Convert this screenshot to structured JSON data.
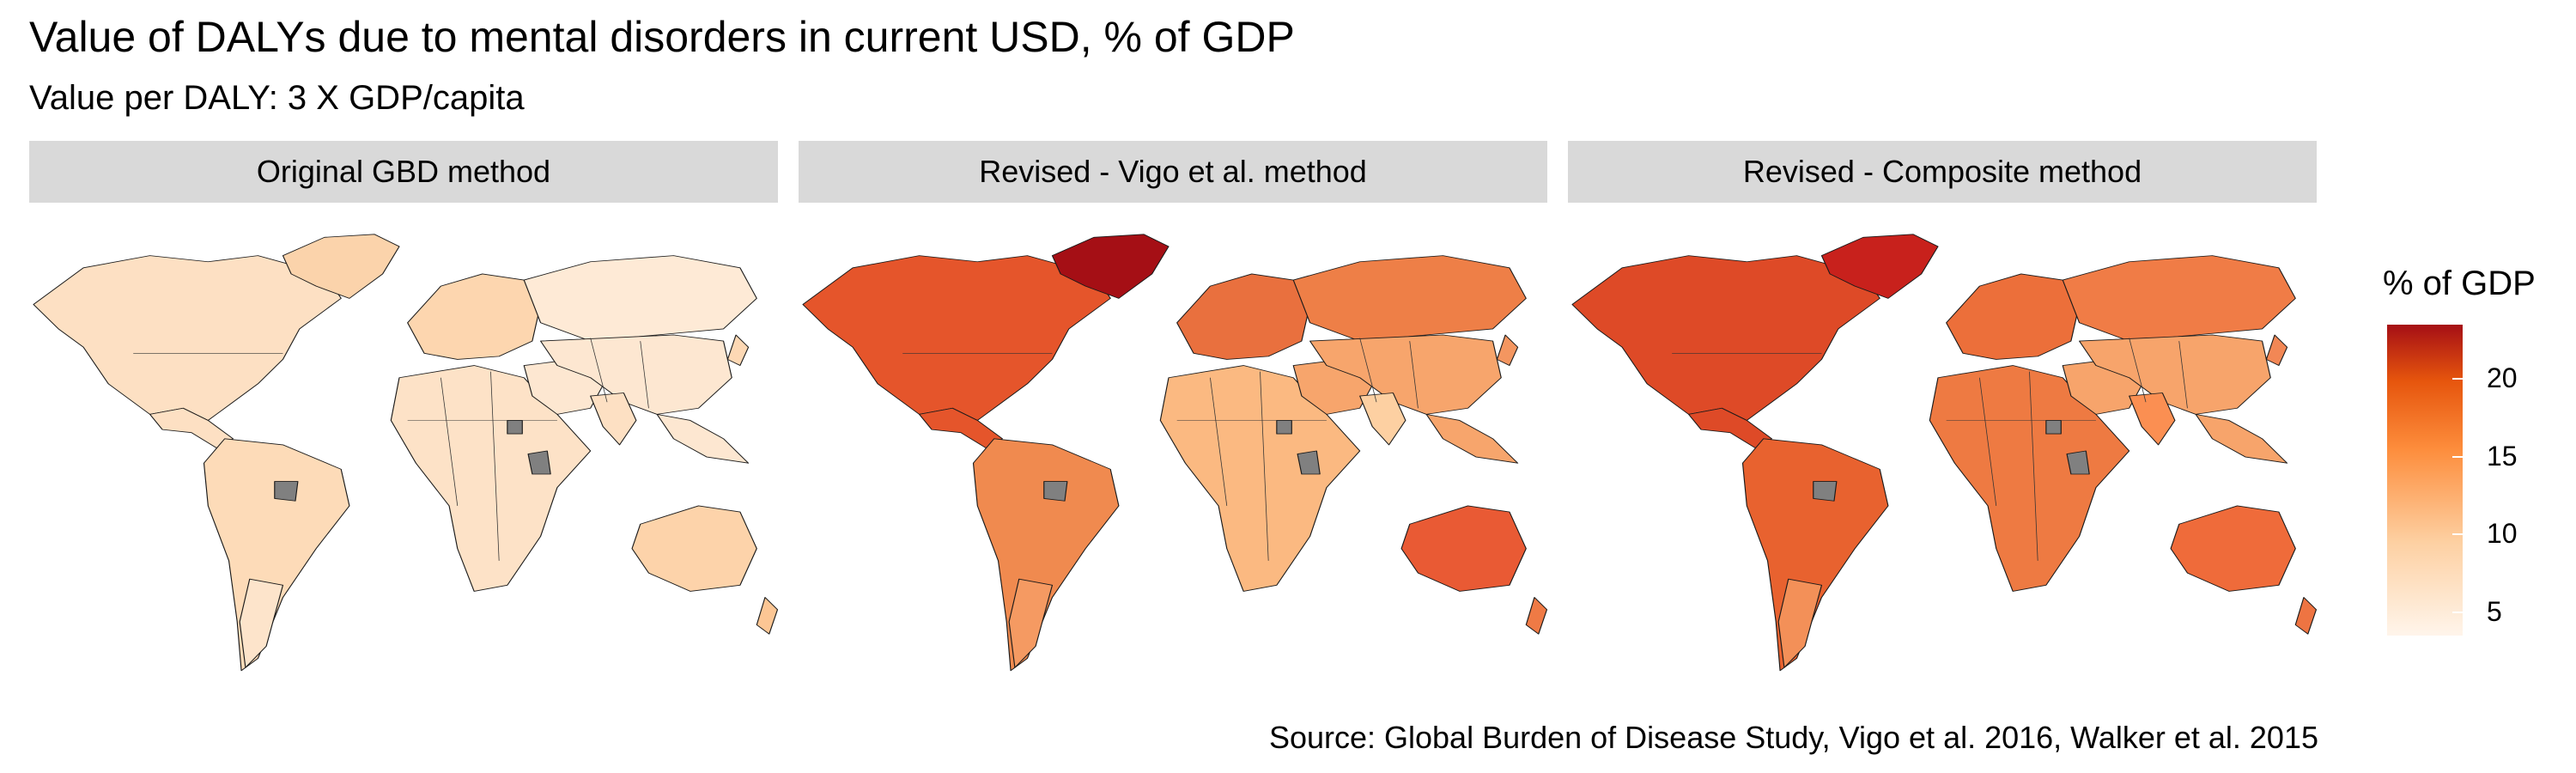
{
  "title": "Value of DALYs due to mental disorders in current USD, % of GDP",
  "subtitle": "Value per DALY: 3 X GDP/capita",
  "panels": [
    {
      "label": "Original GBD method",
      "scheme": "low"
    },
    {
      "label": "Revised - Vigo et al. method",
      "scheme": "mid"
    },
    {
      "label": "Revised - Composite method",
      "scheme": "high"
    }
  ],
  "legend": {
    "title": "% of GDP",
    "ticks": [
      "20",
      "15",
      "10",
      "5"
    ],
    "tick_values": [
      20,
      15,
      10,
      5
    ],
    "min": 3.5,
    "max": 23.5,
    "colors": [
      "#fff5eb",
      "#fdd0a2",
      "#fd8d3c",
      "#e6550d",
      "#a50f15"
    ]
  },
  "colors": {
    "missing": "#808080",
    "strip": "#d9d9d9"
  },
  "source": "Source: Global Burden of Disease Study, Vigo et al. 2016, Walker et al. 2015"
}
